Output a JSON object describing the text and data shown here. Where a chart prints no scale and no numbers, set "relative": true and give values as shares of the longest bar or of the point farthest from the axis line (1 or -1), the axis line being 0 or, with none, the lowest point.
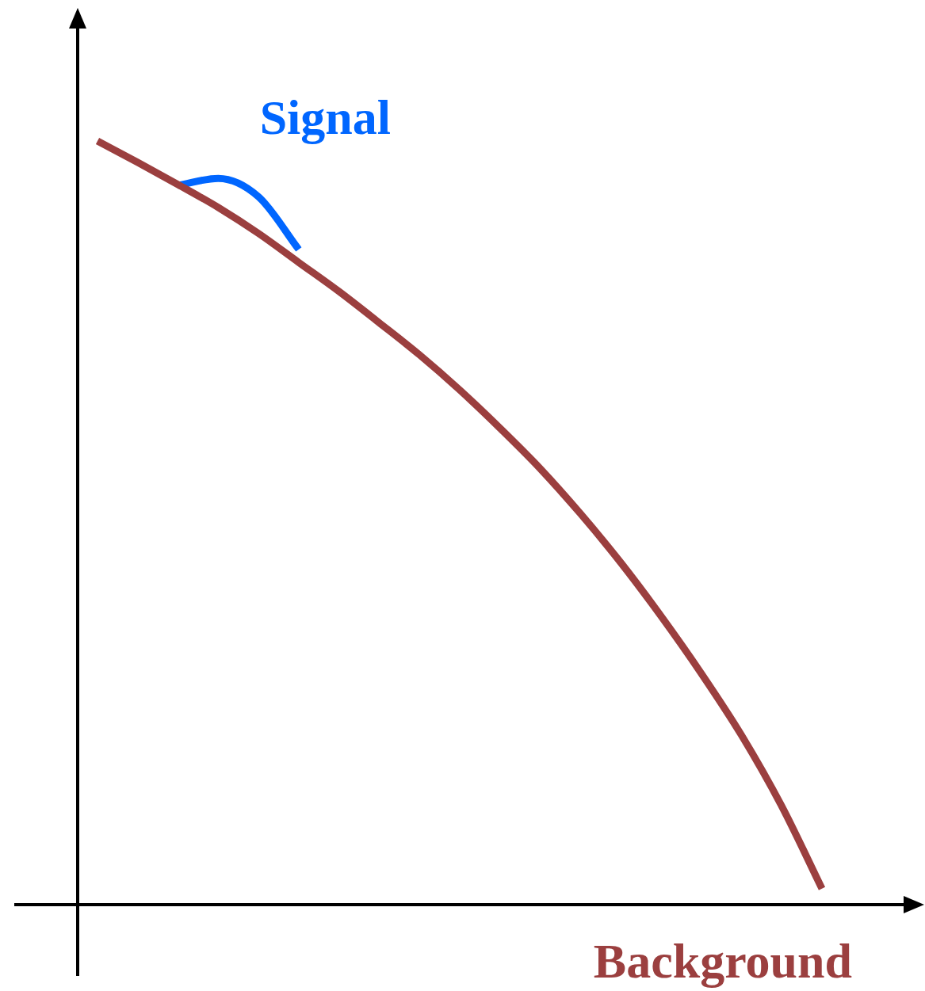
{
  "chart_data": {
    "type": "line",
    "relative": true,
    "tick_labels": false,
    "marker": "none",
    "categories": [
      null,
      null,
      null,
      null,
      null,
      null,
      null,
      null,
      null,
      null,
      null,
      null,
      null,
      null,
      null,
      null,
      null,
      null,
      null
    ],
    "series": [
      {
        "name": "Background",
        "color": "#9b3f3f",
        "values": [
          1,
          0.972,
          0.943,
          0.913,
          0.879,
          0.841,
          0.803,
          0.762,
          0.72,
          0.674,
          0.624,
          0.571,
          0.512,
          0.448,
          0.378,
          0.303,
          0.222,
          0.129,
          0.021
        ]
      },
      {
        "name": "Signal",
        "color": "#0066ff",
        "values": [
          null,
          null,
          0.942,
          0.951,
          0.927,
          0.858,
          null,
          null,
          null,
          null,
          null,
          null,
          null,
          null,
          null,
          null,
          null,
          null,
          null
        ]
      }
    ]
  }
}
